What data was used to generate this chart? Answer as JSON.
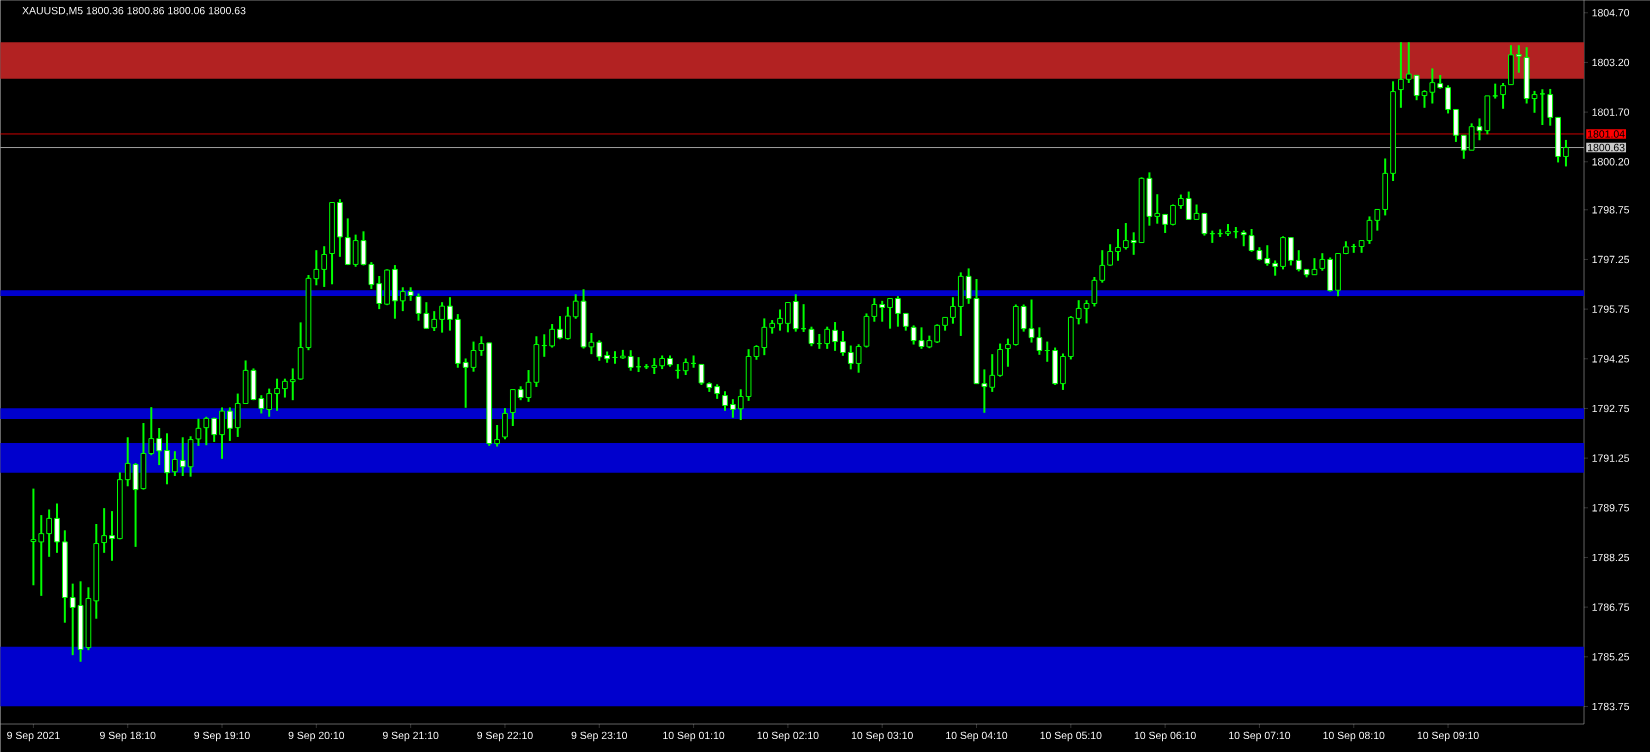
{
  "chart_data": {
    "type": "candlestick",
    "title": "XAUUSD,M5  1800.36 1800.86 1800.06 1800.63",
    "color": "#00ff00",
    "categories": [
      "9 Sep 2021",
      null,
      null,
      null,
      null,
      null,
      null,
      null,
      null,
      null,
      null,
      null,
      "9 Sep 18:10",
      null,
      null,
      null,
      null,
      null,
      null,
      null,
      null,
      null,
      null,
      null,
      "9 Sep 19:10",
      null,
      null,
      null,
      null,
      null,
      null,
      null,
      null,
      null,
      null,
      null,
      "9 Sep 20:10",
      null,
      null,
      null,
      null,
      null,
      null,
      null,
      null,
      null,
      null,
      null,
      "9 Sep 21:10",
      null,
      null,
      null,
      null,
      null,
      null,
      null,
      null,
      null,
      null,
      null,
      "9 Sep 22:10",
      null,
      null,
      null,
      null,
      null,
      null,
      null,
      null,
      null,
      null,
      null,
      "9 Sep 23:10",
      null,
      null,
      null,
      null,
      null,
      null,
      null,
      null,
      null,
      null,
      null,
      "10 Sep 01:10",
      null,
      null,
      null,
      null,
      null,
      null,
      null,
      null,
      null,
      null,
      null,
      "10 Sep 02:10",
      null,
      null,
      null,
      null,
      null,
      null,
      null,
      null,
      null,
      null,
      null,
      "10 Sep 03:10",
      null,
      null,
      null,
      null,
      null,
      null,
      null,
      null,
      null,
      null,
      null,
      "10 Sep 04:10",
      null,
      null,
      null,
      null,
      null,
      null,
      null,
      null,
      null,
      null,
      null,
      "10 Sep 05:10",
      null,
      null,
      null,
      null,
      null,
      null,
      null,
      null,
      null,
      null,
      null,
      "10 Sep 06:10",
      null,
      null,
      null,
      null,
      null,
      null,
      null,
      null,
      null,
      null,
      null,
      "10 Sep 07:10",
      null,
      null,
      null,
      null,
      null,
      null,
      null,
      null,
      null,
      null,
      null,
      "10 Sep 08:10",
      null,
      null,
      null,
      null,
      null,
      null,
      null,
      null,
      null,
      null,
      null,
      "10 Sep 09:10",
      null,
      null,
      null,
      null,
      null,
      null,
      null,
      null,
      null,
      null,
      null,
      null,
      null,
      null,
      null
    ],
    "ohlc": [
      [
        1788.73,
        1790.33,
        1787.41,
        1788.79
      ],
      [
        1788.72,
        1789.53,
        1787.09,
        1788.97
      ],
      [
        1788.97,
        1789.7,
        1788.27,
        1789.43
      ],
      [
        1789.43,
        1789.88,
        1788.39,
        1788.72
      ],
      [
        1788.72,
        1789.07,
        1786.28,
        1787.04
      ],
      [
        1787.04,
        1787.46,
        1785.3,
        1786.74
      ],
      [
        1786.8,
        1787.53,
        1785.1,
        1785.47
      ],
      [
        1785.53,
        1787.35,
        1785.45,
        1787.01
      ],
      [
        1786.94,
        1789.26,
        1786.4,
        1788.67
      ],
      [
        1788.7,
        1789.74,
        1788.39,
        1788.91
      ],
      [
        1788.91,
        1789.65,
        1788.15,
        1788.82
      ],
      [
        1788.82,
        1790.82,
        1788.8,
        1790.6
      ],
      [
        1790.6,
        1791.88,
        1790.4,
        1791.09
      ],
      [
        1791.06,
        1791.1,
        1788.57,
        1790.3
      ],
      [
        1790.33,
        1792.31,
        1790.3,
        1791.39
      ],
      [
        1791.39,
        1792.79,
        1791.34,
        1791.84
      ],
      [
        1791.84,
        1792.16,
        1791.04,
        1791.47
      ],
      [
        1791.48,
        1792.0,
        1790.46,
        1790.81
      ],
      [
        1790.84,
        1791.46,
        1790.71,
        1791.21
      ],
      [
        1791.18,
        1791.88,
        1790.71,
        1790.99
      ],
      [
        1790.99,
        1791.91,
        1790.69,
        1791.81
      ],
      [
        1791.83,
        1792.44,
        1791.62,
        1792.15
      ],
      [
        1792.17,
        1792.5,
        1791.64,
        1792.45
      ],
      [
        1792.45,
        1792.47,
        1791.74,
        1791.96
      ],
      [
        1791.96,
        1792.78,
        1791.23,
        1792.67
      ],
      [
        1792.67,
        1792.78,
        1791.77,
        1792.15
      ],
      [
        1792.17,
        1793.2,
        1791.89,
        1792.9
      ],
      [
        1792.9,
        1794.2,
        1792.9,
        1793.9
      ],
      [
        1793.9,
        1793.96,
        1793.0,
        1793.02
      ],
      [
        1793.05,
        1793.15,
        1792.6,
        1792.75
      ],
      [
        1792.72,
        1793.35,
        1792.5,
        1793.2
      ],
      [
        1793.2,
        1793.65,
        1792.68,
        1793.35
      ],
      [
        1793.35,
        1793.65,
        1793.08,
        1793.57
      ],
      [
        1793.56,
        1793.96,
        1793.0,
        1793.62
      ],
      [
        1793.64,
        1795.35,
        1793.62,
        1794.59
      ],
      [
        1794.59,
        1796.78,
        1794.51,
        1796.68
      ],
      [
        1796.67,
        1797.53,
        1796.47,
        1796.95
      ],
      [
        1796.95,
        1797.65,
        1796.42,
        1797.4
      ],
      [
        1797.43,
        1798.97,
        1796.5,
        1798.97
      ],
      [
        1798.97,
        1799.07,
        1797.33,
        1797.93
      ],
      [
        1797.91,
        1798.49,
        1797.08,
        1797.1
      ],
      [
        1797.1,
        1798.0,
        1797.03,
        1797.82
      ],
      [
        1797.82,
        1798.1,
        1797.07,
        1797.1
      ],
      [
        1797.1,
        1797.17,
        1796.36,
        1796.49
      ],
      [
        1796.52,
        1796.75,
        1795.75,
        1795.92
      ],
      [
        1795.9,
        1796.95,
        1795.87,
        1796.93
      ],
      [
        1796.95,
        1797.08,
        1795.46,
        1796.0
      ],
      [
        1796.0,
        1796.41,
        1795.69,
        1796.28
      ],
      [
        1796.28,
        1796.41,
        1796.0,
        1796.16
      ],
      [
        1796.13,
        1796.22,
        1795.4,
        1795.62
      ],
      [
        1795.62,
        1795.96,
        1795.15,
        1795.17
      ],
      [
        1795.19,
        1795.69,
        1795.09,
        1795.44
      ],
      [
        1795.44,
        1795.96,
        1795.04,
        1795.84
      ],
      [
        1795.84,
        1796.11,
        1795.1,
        1795.44
      ],
      [
        1795.44,
        1795.6,
        1793.98,
        1794.11
      ],
      [
        1794.14,
        1794.26,
        1792.77,
        1793.99
      ],
      [
        1793.99,
        1794.77,
        1793.86,
        1794.5
      ],
      [
        1794.5,
        1794.93,
        1794.34,
        1794.71
      ],
      [
        1794.73,
        1794.73,
        1791.62,
        1791.69
      ],
      [
        1791.69,
        1792.25,
        1791.6,
        1791.81
      ],
      [
        1791.89,
        1792.76,
        1791.82,
        1792.6
      ],
      [
        1792.63,
        1793.32,
        1792.22,
        1793.32
      ],
      [
        1793.32,
        1793.42,
        1793.0,
        1793.08
      ],
      [
        1793.08,
        1793.91,
        1792.95,
        1793.54
      ],
      [
        1793.54,
        1794.93,
        1793.4,
        1794.68
      ],
      [
        1794.65,
        1794.99,
        1794.31,
        1794.65
      ],
      [
        1794.64,
        1795.3,
        1794.59,
        1795.14
      ],
      [
        1795.14,
        1795.54,
        1794.84,
        1794.88
      ],
      [
        1794.86,
        1795.82,
        1794.83,
        1795.54
      ],
      [
        1795.52,
        1796.2,
        1795.46,
        1795.99
      ],
      [
        1795.99,
        1796.35,
        1794.56,
        1794.61
      ],
      [
        1794.61,
        1795.03,
        1794.39,
        1794.75
      ],
      [
        1794.75,
        1794.81,
        1794.19,
        1794.31
      ],
      [
        1794.35,
        1794.47,
        1794.13,
        1794.25
      ],
      [
        1794.29,
        1794.48,
        1794.1,
        1794.29
      ],
      [
        1794.28,
        1794.52,
        1794.25,
        1794.33
      ],
      [
        1794.32,
        1794.51,
        1793.89,
        1793.99
      ],
      [
        1794.01,
        1794.3,
        1793.85,
        1794.01
      ],
      [
        1794.01,
        1794.09,
        1793.94,
        1794.01
      ],
      [
        1793.99,
        1794.27,
        1793.79,
        1794.05
      ],
      [
        1794.04,
        1794.35,
        1793.94,
        1794.26
      ],
      [
        1794.26,
        1794.35,
        1794.01,
        1794.07
      ],
      [
        1793.9,
        1794.09,
        1793.65,
        1793.9
      ],
      [
        1793.89,
        1794.26,
        1793.76,
        1794.14
      ],
      [
        1794.11,
        1794.35,
        1793.98,
        1794.11
      ],
      [
        1794.08,
        1794.08,
        1793.46,
        1793.52
      ],
      [
        1793.5,
        1793.54,
        1793.25,
        1793.38
      ],
      [
        1793.41,
        1793.48,
        1793.04,
        1793.2
      ],
      [
        1793.14,
        1793.27,
        1792.68,
        1792.84
      ],
      [
        1792.87,
        1793.03,
        1792.47,
        1792.72
      ],
      [
        1792.74,
        1793.33,
        1792.4,
        1793.11
      ],
      [
        1793.11,
        1794.54,
        1792.98,
        1794.32
      ],
      [
        1794.32,
        1794.66,
        1794.22,
        1794.62
      ],
      [
        1794.59,
        1795.47,
        1794.36,
        1795.2
      ],
      [
        1795.19,
        1795.42,
        1795.01,
        1795.32
      ],
      [
        1795.31,
        1795.74,
        1795.1,
        1795.47
      ],
      [
        1795.32,
        1795.95,
        1795.05,
        1795.95
      ],
      [
        1795.98,
        1796.2,
        1795.07,
        1795.16
      ],
      [
        1795.16,
        1795.9,
        1795.06,
        1795.16
      ],
      [
        1795.14,
        1795.22,
        1794.63,
        1794.71
      ],
      [
        1794.71,
        1795.0,
        1794.55,
        1794.71
      ],
      [
        1794.71,
        1795.22,
        1794.55,
        1795.14
      ],
      [
        1795.11,
        1795.36,
        1794.49,
        1794.77
      ],
      [
        1794.77,
        1795.09,
        1794.34,
        1794.44
      ],
      [
        1794.44,
        1794.65,
        1793.93,
        1794.11
      ],
      [
        1794.11,
        1794.69,
        1793.83,
        1794.62
      ],
      [
        1794.63,
        1795.62,
        1794.59,
        1795.53
      ],
      [
        1795.53,
        1796.08,
        1795.37,
        1795.89
      ],
      [
        1795.89,
        1796.0,
        1795.37,
        1795.8
      ],
      [
        1795.8,
        1796.07,
        1795.16,
        1796.07
      ],
      [
        1796.07,
        1796.14,
        1795.22,
        1795.62
      ],
      [
        1795.62,
        1795.62,
        1795.1,
        1795.23
      ],
      [
        1795.2,
        1795.26,
        1794.68,
        1794.8
      ],
      [
        1794.8,
        1795.2,
        1794.55,
        1794.62
      ],
      [
        1794.61,
        1794.95,
        1794.57,
        1794.8
      ],
      [
        1794.76,
        1795.29,
        1794.73,
        1795.26
      ],
      [
        1795.26,
        1795.5,
        1795.1,
        1795.5
      ],
      [
        1795.5,
        1796.11,
        1795.31,
        1795.83
      ],
      [
        1795.83,
        1796.86,
        1794.94,
        1796.74
      ],
      [
        1796.74,
        1796.98,
        1795.91,
        1796.07
      ],
      [
        1796.07,
        1796.66,
        1793.5,
        1793.5
      ],
      [
        1793.5,
        1793.93,
        1792.62,
        1793.41
      ],
      [
        1793.39,
        1794.39,
        1793.25,
        1793.75
      ],
      [
        1793.75,
        1794.71,
        1793.71,
        1794.53
      ],
      [
        1794.56,
        1794.86,
        1794.01,
        1794.68
      ],
      [
        1794.68,
        1795.89,
        1794.65,
        1795.83
      ],
      [
        1795.83,
        1795.89,
        1795.07,
        1795.16
      ],
      [
        1795.16,
        1796.04,
        1794.74,
        1794.89
      ],
      [
        1794.89,
        1795.2,
        1794.37,
        1794.5
      ],
      [
        1794.5,
        1794.77,
        1794.16,
        1794.5
      ],
      [
        1794.5,
        1794.59,
        1793.46,
        1793.5
      ],
      [
        1793.5,
        1794.41,
        1793.31,
        1794.32
      ],
      [
        1794.32,
        1795.54,
        1794.23,
        1795.5
      ],
      [
        1795.47,
        1796.02,
        1795.29,
        1795.77
      ],
      [
        1795.77,
        1796.02,
        1795.32,
        1795.92
      ],
      [
        1795.92,
        1796.72,
        1795.83,
        1796.62
      ],
      [
        1796.62,
        1797.53,
        1796.55,
        1797.07
      ],
      [
        1797.08,
        1797.71,
        1797.06,
        1797.49
      ],
      [
        1797.49,
        1798.17,
        1797.21,
        1797.61
      ],
      [
        1797.61,
        1798.35,
        1797.55,
        1797.82
      ],
      [
        1797.82,
        1798.07,
        1797.39,
        1797.76
      ],
      [
        1797.76,
        1799.73,
        1797.76,
        1799.7
      ],
      [
        1799.7,
        1799.88,
        1798.27,
        1798.55
      ],
      [
        1798.55,
        1799.22,
        1798.33,
        1798.64
      ],
      [
        1798.61,
        1798.61,
        1798.05,
        1798.31
      ],
      [
        1798.31,
        1798.91,
        1798.28,
        1798.88
      ],
      [
        1798.88,
        1799.21,
        1798.78,
        1799.09
      ],
      [
        1799.09,
        1799.3,
        1798.46,
        1798.46
      ],
      [
        1798.46,
        1798.91,
        1798.45,
        1798.64
      ],
      [
        1798.64,
        1798.64,
        1797.97,
        1798.03
      ],
      [
        1798.03,
        1798.12,
        1797.75,
        1798.03
      ],
      [
        1798.03,
        1798.16,
        1797.93,
        1798.03
      ],
      [
        1798.03,
        1798.32,
        1797.96,
        1798.09
      ],
      [
        1798.09,
        1798.23,
        1797.89,
        1798.09
      ],
      [
        1798.06,
        1798.13,
        1797.65,
        1798.0
      ],
      [
        1797.97,
        1798.17,
        1797.48,
        1797.52
      ],
      [
        1797.52,
        1797.62,
        1797.22,
        1797.25
      ],
      [
        1797.28,
        1797.68,
        1797.06,
        1797.13
      ],
      [
        1797.13,
        1797.22,
        1796.76,
        1797.04
      ],
      [
        1797.04,
        1797.95,
        1796.95,
        1797.91
      ],
      [
        1797.91,
        1797.91,
        1797.07,
        1797.22
      ],
      [
        1797.22,
        1797.53,
        1796.89,
        1796.95
      ],
      [
        1796.95,
        1796.95,
        1796.71,
        1796.79
      ],
      [
        1796.79,
        1797.29,
        1796.78,
        1796.95
      ],
      [
        1796.98,
        1797.44,
        1796.91,
        1797.25
      ],
      [
        1797.25,
        1797.31,
        1796.28,
        1796.31
      ],
      [
        1796.32,
        1797.43,
        1796.14,
        1797.43
      ],
      [
        1797.43,
        1797.8,
        1797.41,
        1797.63
      ],
      [
        1797.64,
        1797.72,
        1797.45,
        1797.64
      ],
      [
        1797.64,
        1797.82,
        1797.45,
        1797.82
      ],
      [
        1797.82,
        1798.55,
        1797.72,
        1798.43
      ],
      [
        1798.43,
        1798.76,
        1798.12,
        1798.76
      ],
      [
        1798.76,
        1800.3,
        1798.58,
        1799.85
      ],
      [
        1799.85,
        1802.63,
        1799.62,
        1802.32
      ],
      [
        1802.38,
        1803.81,
        1801.83,
        1802.69
      ],
      [
        1802.69,
        1803.81,
        1802.58,
        1802.85
      ],
      [
        1802.81,
        1802.81,
        1802.06,
        1802.2
      ],
      [
        1802.2,
        1802.36,
        1801.83,
        1802.32
      ],
      [
        1802.3,
        1803.02,
        1801.96,
        1802.59
      ],
      [
        1802.56,
        1802.82,
        1802.41,
        1802.44
      ],
      [
        1802.44,
        1802.51,
        1801.66,
        1801.78
      ],
      [
        1801.78,
        1801.78,
        1800.8,
        1801.0
      ],
      [
        1801.0,
        1801.0,
        1800.29,
        1800.55
      ],
      [
        1800.55,
        1801.36,
        1800.55,
        1801.26
      ],
      [
        1801.26,
        1801.51,
        1800.85,
        1801.14
      ],
      [
        1801.14,
        1802.19,
        1801.03,
        1802.19
      ],
      [
        1802.19,
        1802.56,
        1802.11,
        1802.19
      ],
      [
        1802.23,
        1802.58,
        1801.8,
        1802.5
      ],
      [
        1802.53,
        1803.72,
        1802.53,
        1803.43
      ],
      [
        1803.44,
        1803.72,
        1802.89,
        1803.39
      ],
      [
        1803.35,
        1803.66,
        1801.96,
        1802.11
      ],
      [
        1802.11,
        1802.34,
        1801.68,
        1802.23
      ],
      [
        1802.25,
        1802.39,
        1801.31,
        1802.25
      ],
      [
        1802.23,
        1802.4,
        1801.29,
        1801.54
      ],
      [
        1801.54,
        1801.54,
        1800.18,
        1800.36
      ],
      [
        1800.36,
        1800.86,
        1800.06,
        1800.63
      ]
    ],
    "ylim": [
      1783.22,
      1805.08
    ],
    "yticks": [
      {
        "value": 1804.7,
        "label": "1804.70"
      },
      {
        "value": 1803.2,
        "label": "1803.20"
      },
      {
        "value": 1801.7,
        "label": "1801.70"
      },
      {
        "value": 1800.2,
        "label": "1800.20"
      },
      {
        "value": 1798.75,
        "label": "1798.75"
      },
      {
        "value": 1797.25,
        "label": "1797.25"
      },
      {
        "value": 1795.75,
        "label": "1795.75"
      },
      {
        "value": 1794.25,
        "label": "1794.25"
      },
      {
        "value": 1792.75,
        "label": "1792.75"
      },
      {
        "value": 1791.25,
        "label": "1791.25"
      },
      {
        "value": 1789.75,
        "label": "1789.75"
      },
      {
        "value": 1788.25,
        "label": "1788.25"
      },
      {
        "value": 1786.75,
        "label": "1786.75"
      },
      {
        "value": 1785.25,
        "label": "1785.25"
      },
      {
        "value": 1783.75,
        "label": "1783.75"
      }
    ],
    "bands": [
      {
        "axis": "y",
        "from": 1802.71,
        "to": 1803.81,
        "color": "#b22222"
      },
      {
        "axis": "y",
        "from": 1796.15,
        "to": 1796.32,
        "color": "#0000cd"
      },
      {
        "axis": "y",
        "from": 1792.43,
        "to": 1792.76,
        "color": "#0000cd"
      },
      {
        "axis": "y",
        "from": 1790.81,
        "to": 1791.71,
        "color": "#0000cd"
      },
      {
        "axis": "y",
        "from": 1783.76,
        "to": 1785.55,
        "color": "#0000cd"
      }
    ],
    "ref_lines": [
      {
        "axis": "y",
        "value": 1801.04,
        "label": "1801.04",
        "color": "#ff0000"
      },
      {
        "axis": "y",
        "value": 1800.63,
        "label": "1800.63",
        "color": "#c8c8c8"
      }
    ]
  }
}
